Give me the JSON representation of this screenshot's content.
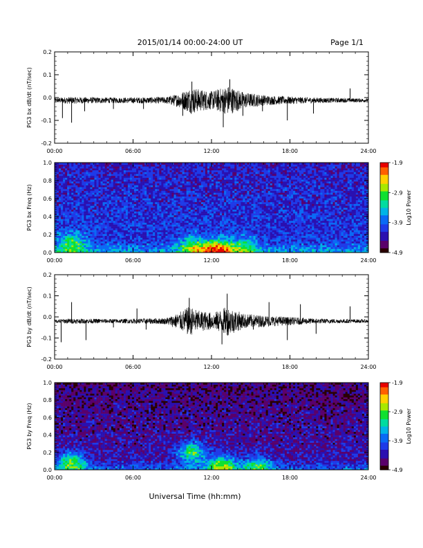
{
  "header": {
    "title": "2015/01/14  00:00-24:00 UT",
    "page": "Page 1/1"
  },
  "xaxis_label": "Universal Time (hh:mm)",
  "colors": {
    "colormap": [
      "#2a0000",
      "#5a006a",
      "#2a10b0",
      "#1e3ae8",
      "#0a6af5",
      "#00b4e6",
      "#00dca0",
      "#10e030",
      "#a8e800",
      "#ffd000",
      "#ff6000",
      "#e80000"
    ]
  },
  "chart_data": [
    {
      "id": "bx-timeseries",
      "type": "line",
      "ylabel": "PG3 bx dB/dt (nT/sec)",
      "xlim": [
        "00:00",
        "24:00"
      ],
      "ylim": [
        -0.2,
        0.2
      ],
      "xticks": [
        "00:00",
        "06:00",
        "12:00",
        "18:00",
        "24:00"
      ],
      "yticks": [
        "-0.2",
        "-0.1",
        "0.0",
        "0.1",
        "0.2"
      ],
      "baseline": -0.012,
      "noise_envelope": [
        {
          "t": 0.0,
          "amp": 0.01
        },
        {
          "t": 1.0,
          "amp": 0.015
        },
        {
          "t": 5.0,
          "amp": 0.012
        },
        {
          "t": 8.5,
          "amp": 0.015
        },
        {
          "t": 9.5,
          "amp": 0.03
        },
        {
          "t": 10.5,
          "amp": 0.06
        },
        {
          "t": 11.0,
          "amp": 0.05
        },
        {
          "t": 12.0,
          "amp": 0.04
        },
        {
          "t": 13.3,
          "amp": 0.065
        },
        {
          "t": 14.5,
          "amp": 0.035
        },
        {
          "t": 16.5,
          "amp": 0.02
        },
        {
          "t": 20.0,
          "amp": 0.012
        },
        {
          "t": 24.0,
          "amp": 0.008
        }
      ],
      "spikes": [
        {
          "t": 0.6,
          "v": -0.09
        },
        {
          "t": 1.3,
          "v": -0.11
        },
        {
          "t": 2.3,
          "v": -0.06
        },
        {
          "t": 4.5,
          "v": -0.05
        },
        {
          "t": 6.8,
          "v": -0.05
        },
        {
          "t": 9.8,
          "v": -0.08
        },
        {
          "t": 10.5,
          "v": 0.07
        },
        {
          "t": 12.9,
          "v": -0.13
        },
        {
          "t": 13.4,
          "v": 0.08
        },
        {
          "t": 14.4,
          "v": -0.08
        },
        {
          "t": 15.9,
          "v": -0.06
        },
        {
          "t": 17.8,
          "v": -0.1
        },
        {
          "t": 19.8,
          "v": -0.07
        },
        {
          "t": 22.6,
          "v": 0.04
        }
      ]
    },
    {
      "id": "bx-spectrogram",
      "type": "heatmap",
      "ylabel": "PG3 bx Freq (Hz)",
      "xlim": [
        "00:00",
        "24:00"
      ],
      "ylim": [
        0.0,
        1.0
      ],
      "xticks": [
        "00:00",
        "06:00",
        "12:00",
        "18:00",
        "24:00"
      ],
      "yticks": [
        "0.0",
        "0.2",
        "0.4",
        "0.6",
        "0.8",
        "1.0"
      ],
      "colorbar": {
        "label": "Log10 Power",
        "ticks": [
          "-1.9",
          "-2.9",
          "-3.9",
          "-4.9"
        ],
        "range": [
          -4.9,
          -1.9
        ]
      },
      "background_level": -4.05,
      "hotspots": [
        {
          "t": 12.5,
          "f": 0.02,
          "level": -2.2
        },
        {
          "t": 10.6,
          "f": 0.05,
          "level": -2.9
        },
        {
          "t": 1.3,
          "f": 0.1,
          "level": -3.0
        },
        {
          "t": 14.5,
          "f": 0.05,
          "level": -3.2
        }
      ]
    },
    {
      "id": "by-timeseries",
      "type": "line",
      "ylabel": "PG3 by dB/dt (nT/sec)",
      "xlim": [
        "00:00",
        "24:00"
      ],
      "ylim": [
        -0.2,
        0.2
      ],
      "xticks": [
        "00:00",
        "06:00",
        "12:00",
        "18:00",
        "24:00"
      ],
      "yticks": [
        "-0.2",
        "-0.1",
        "0.0",
        "0.1",
        "0.2"
      ],
      "baseline": -0.02,
      "noise_envelope": [
        {
          "t": 0.0,
          "amp": 0.008
        },
        {
          "t": 1.0,
          "amp": 0.012
        },
        {
          "t": 5.0,
          "amp": 0.01
        },
        {
          "t": 8.5,
          "amp": 0.015
        },
        {
          "t": 9.5,
          "amp": 0.04
        },
        {
          "t": 10.3,
          "amp": 0.07
        },
        {
          "t": 11.0,
          "amp": 0.05
        },
        {
          "t": 12.2,
          "amp": 0.04
        },
        {
          "t": 13.2,
          "amp": 0.07
        },
        {
          "t": 14.5,
          "amp": 0.035
        },
        {
          "t": 16.5,
          "amp": 0.025
        },
        {
          "t": 20.0,
          "amp": 0.012
        },
        {
          "t": 24.0,
          "amp": 0.008
        }
      ],
      "spikes": [
        {
          "t": 0.5,
          "v": -0.12
        },
        {
          "t": 1.3,
          "v": 0.07
        },
        {
          "t": 2.4,
          "v": -0.11
        },
        {
          "t": 4.5,
          "v": -0.05
        },
        {
          "t": 6.3,
          "v": 0.04
        },
        {
          "t": 7.0,
          "v": -0.06
        },
        {
          "t": 10.3,
          "v": 0.09
        },
        {
          "t": 12.8,
          "v": -0.13
        },
        {
          "t": 13.2,
          "v": 0.11
        },
        {
          "t": 15.2,
          "v": -0.06
        },
        {
          "t": 16.4,
          "v": 0.07
        },
        {
          "t": 17.8,
          "v": -0.11
        },
        {
          "t": 18.8,
          "v": 0.06
        },
        {
          "t": 20.0,
          "v": -0.08
        },
        {
          "t": 22.6,
          "v": 0.05
        }
      ]
    },
    {
      "id": "by-spectrogram",
      "type": "heatmap",
      "ylabel": "PG3 by Freq (Hz)",
      "xlim": [
        "00:00",
        "24:00"
      ],
      "ylim": [
        0.0,
        1.0
      ],
      "xticks": [
        "00:00",
        "06:00",
        "12:00",
        "18:00",
        "24:00"
      ],
      "yticks": [
        "0.0",
        "0.2",
        "0.4",
        "0.6",
        "0.8",
        "1.0"
      ],
      "colorbar": {
        "label": "Log10 Power",
        "ticks": [
          "-1.9",
          "-2.9",
          "-3.9",
          "-4.9"
        ],
        "range": [
          -4.9,
          -1.9
        ]
      },
      "background_level": -4.35,
      "hotspots": [
        {
          "t": 10.5,
          "f": 0.2,
          "level": -3.0
        },
        {
          "t": 12.8,
          "f": 0.05,
          "level": -2.9
        },
        {
          "t": 1.3,
          "f": 0.08,
          "level": -3.0
        },
        {
          "t": 15.5,
          "f": 0.04,
          "level": -3.3
        }
      ]
    }
  ]
}
